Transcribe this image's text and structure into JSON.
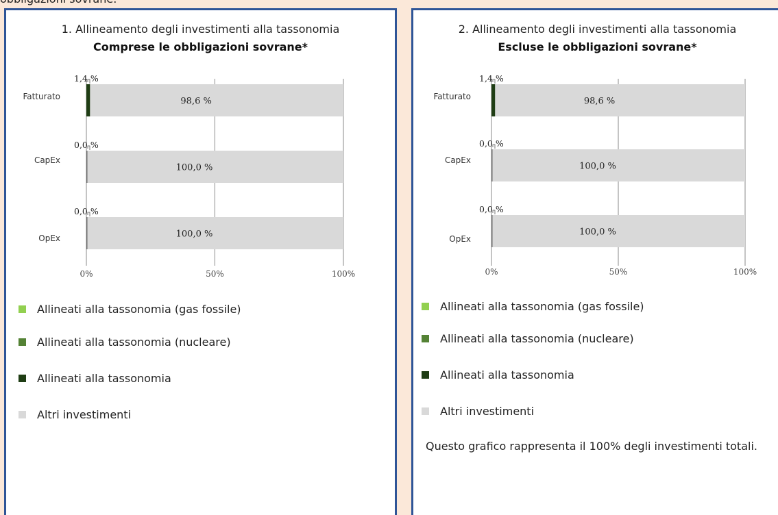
{
  "page": {
    "top_text_fragment": "obbligazioni sovrane."
  },
  "colors": {
    "page_background": "#fbe8d9",
    "panel_border": "#2f5597",
    "gas_fossile": "#92d050",
    "nucleare": "#548235",
    "allineati": "#1f3d14",
    "altri": "#d9d9d9"
  },
  "legend": [
    {
      "label": "Allineati alla tassonomia (gas fossile)",
      "color": "#92d050",
      "icon": "square-swatch"
    },
    {
      "label": "Allineati alla tassonomia (nucleare)",
      "color": "#548235",
      "icon": "square-swatch"
    },
    {
      "label": "Allineati alla tassonomia",
      "color": "#1f3d14",
      "icon": "square-swatch"
    },
    {
      "label": "Altri investimenti",
      "color": "#d9d9d9",
      "icon": "square-swatch"
    }
  ],
  "note": "Questo grafico rappresenta il 100% degli investimenti totali.",
  "chart_data": [
    {
      "type": "bar",
      "orientation": "horizontal",
      "stacked": true,
      "title": "1. Allineamento degli investimenti alla tassonomia",
      "subtitle": "Comprese le obbligazioni sovrane*",
      "categories": [
        "Fatturato",
        "CapEx",
        "OpEx"
      ],
      "series": [
        {
          "name": "Allineati alla tassonomia",
          "values": [
            1.4,
            0.0,
            0.0
          ],
          "labels": [
            "1,4 %",
            "0,0 %",
            "0,0 %"
          ]
        },
        {
          "name": "Altri investimenti",
          "values": [
            98.6,
            100.0,
            100.0
          ],
          "labels": [
            "98,6 %",
            "100,0 %",
            "100,0 %"
          ]
        }
      ],
      "xlim": [
        0,
        100
      ],
      "xticks": [
        "0%",
        "50%",
        "100%"
      ],
      "grid": true
    },
    {
      "type": "bar",
      "orientation": "horizontal",
      "stacked": true,
      "title": "2. Allineamento degli investimenti alla tassonomia",
      "subtitle": "Escluse le obbligazioni sovrane*",
      "categories": [
        "Fatturato",
        "CapEx",
        "OpEx"
      ],
      "series": [
        {
          "name": "Allineati alla tassonomia",
          "values": [
            1.4,
            0.0,
            0.0
          ],
          "labels": [
            "1,4 %",
            "0,0 %",
            "0,0 %"
          ]
        },
        {
          "name": "Altri investimenti",
          "values": [
            98.6,
            100.0,
            100.0
          ],
          "labels": [
            "98,6 %",
            "100,0 %",
            "100,0 %"
          ]
        }
      ],
      "xlim": [
        0,
        100
      ],
      "xticks": [
        "0%",
        "50%",
        "100%"
      ],
      "grid": true
    }
  ]
}
